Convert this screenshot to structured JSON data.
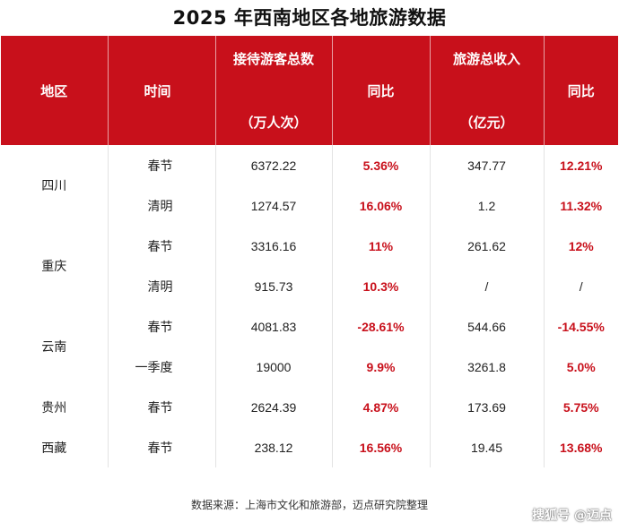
{
  "title": "2025 年西南地区各地旅游数据",
  "header": {
    "region": "地区",
    "time": "时间",
    "visitors_line1": "接待游客总数",
    "visitors_line2": "（万人次）",
    "yoy1": "同比",
    "revenue_line1": "旅游总收入",
    "revenue_line2": "（亿元）",
    "yoy2": "同比"
  },
  "rows": [
    {
      "region": "四川",
      "period": "春节",
      "visitors": "6372.22",
      "yoy1": "5.36%",
      "revenue": "347.77",
      "yoy2": "12.21%"
    },
    {
      "region": "",
      "period": "清明",
      "visitors": "1274.57",
      "yoy1": "16.06%",
      "revenue": "1.2",
      "yoy2": "11.32%"
    },
    {
      "region": "重庆",
      "period": "春节",
      "visitors": "3316.16",
      "yoy1": "11%",
      "revenue": "261.62",
      "yoy2": "12%"
    },
    {
      "region": "",
      "period": "清明",
      "visitors": "915.73",
      "yoy1": "10.3%",
      "revenue": "/",
      "yoy2": "/"
    },
    {
      "region": "云南",
      "period": "春节",
      "visitors": "4081.83",
      "yoy1": "-28.61%",
      "revenue": "544.66",
      "yoy2": "-14.55%"
    },
    {
      "region": "",
      "period": "一季度",
      "visitors": "19000",
      "yoy1": "9.9%",
      "revenue": "3261.8",
      "yoy2": "5.0%"
    },
    {
      "region": "贵州",
      "period": "春节",
      "visitors": "2624.39",
      "yoy1": "4.87%",
      "revenue": "173.69",
      "yoy2": "5.75%"
    },
    {
      "region": "西藏",
      "period": "春节",
      "visitors": "238.12",
      "yoy1": "16.56%",
      "revenue": "19.45",
      "yoy2": "13.68%"
    }
  ],
  "footer": "数据来源：上海市文化和旅游部，迈点研究院整理",
  "watermark": "搜狐号 @迈点",
  "colors": {
    "accent": "#c8101b",
    "header_text": "#ffffff"
  }
}
